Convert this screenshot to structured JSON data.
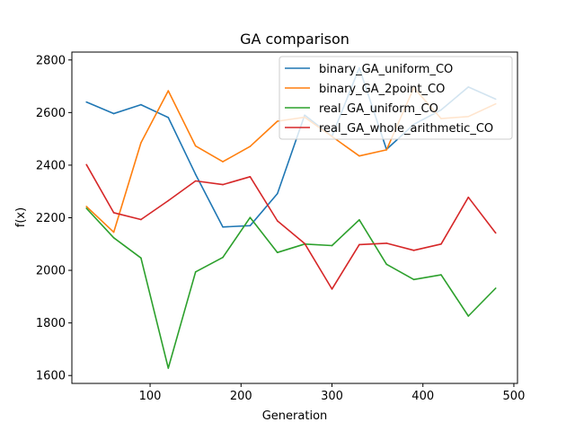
{
  "chart_data": {
    "type": "line",
    "title": "GA comparison",
    "xlabel": "Generation",
    "ylabel": "f(x)",
    "xlim": [
      14,
      504
    ],
    "ylim": [
      1570,
      2830
    ],
    "xticks": [
      100,
      200,
      300,
      400,
      500
    ],
    "yticks": [
      1600,
      1800,
      2000,
      2200,
      2400,
      2600,
      2800
    ],
    "grid": false,
    "legend_position": "top-right",
    "x": [
      30,
      60,
      90,
      120,
      150,
      180,
      210,
      240,
      270,
      300,
      330,
      360,
      390,
      420,
      450,
      480
    ],
    "series": [
      {
        "name": "binary_GA_uniform_CO",
        "color": "#1f77b4",
        "values": [
          2640,
          2596,
          2630,
          2581,
          2365,
          2165,
          2170,
          2292,
          2590,
          2510,
          2770,
          2460,
          2555,
          2610,
          2697,
          2651
        ]
      },
      {
        "name": "binary_GA_2point_CO",
        "color": "#ff7f0e",
        "values": [
          2243,
          2145,
          2485,
          2683,
          2473,
          2413,
          2471,
          2567,
          2582,
          2509,
          2435,
          2458,
          2694,
          2577,
          2585,
          2633
        ]
      },
      {
        "name": "real_GA_uniform_CO",
        "color": "#2ca02c",
        "values": [
          2236,
          2124,
          2047,
          1628,
          1994,
          2049,
          2201,
          2068,
          2100,
          2094,
          2192,
          2023,
          1965,
          1983,
          1826,
          1932
        ]
      },
      {
        "name": "real_GA_whole_arithmetic_CO",
        "color": "#d62728",
        "values": [
          2402,
          2219,
          2193,
          2265,
          2340,
          2326,
          2356,
          2188,
          2102,
          1929,
          2098,
          2103,
          2076,
          2100,
          2278,
          2142
        ]
      }
    ]
  }
}
